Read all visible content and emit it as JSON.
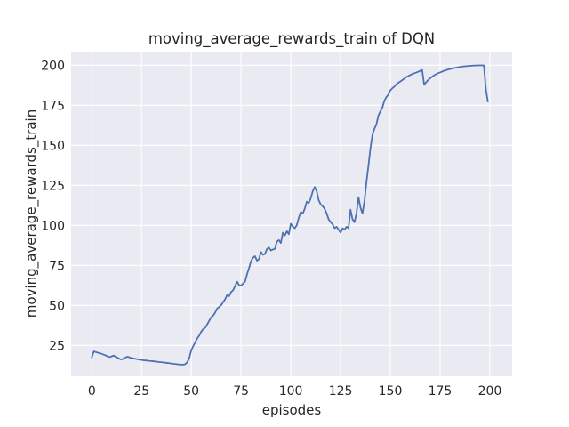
{
  "figure": {
    "background": "#ffffff"
  },
  "chart_data": {
    "type": "line",
    "title": "moving_average_rewards_train of DQN",
    "xlabel": "episodes",
    "ylabel": "moving_average_rewards_train",
    "x_ticks": [
      0,
      25,
      50,
      75,
      100,
      125,
      150,
      175,
      200
    ],
    "y_ticks": [
      25,
      50,
      75,
      100,
      125,
      150,
      175,
      200
    ],
    "xlim": [
      -10.4,
      211.2
    ],
    "ylim": [
      5.7,
      208.5
    ],
    "grid": true,
    "legend_position": "none",
    "style": {
      "plot_bg": "#EAEAF2",
      "grid_color": "#FFFFFF",
      "line_color": "#4C72B0",
      "text_color": "#262626",
      "line_width": 1.8
    },
    "series": [
      {
        "name": "moving_average_rewards_train",
        "x_start": 0,
        "x_step": 1,
        "y": [
          17.5,
          21.2,
          20.8,
          20.4,
          20.1,
          19.7,
          19.2,
          18.7,
          18.1,
          17.7,
          18.2,
          18.6,
          17.9,
          17.3,
          16.5,
          16.2,
          16.8,
          17.5,
          17.9,
          17.5,
          17.1,
          16.9,
          16.6,
          16.3,
          16.1,
          15.9,
          15.7,
          15.6,
          15.5,
          15.3,
          15.2,
          15.1,
          14.9,
          14.8,
          14.6,
          14.5,
          14.3,
          14.2,
          14.0,
          13.9,
          13.7,
          13.5,
          13.4,
          13.2,
          13.1,
          13.0,
          13.0,
          13.3,
          14.6,
          17.2,
          22.0,
          24.6,
          27.0,
          29.4,
          31.2,
          33.6,
          35.2,
          36.0,
          38.1,
          40.4,
          42.6,
          43.6,
          45.5,
          48.0,
          49.0,
          50.1,
          52.0,
          53.8,
          56.5,
          55.7,
          58.3,
          59.4,
          62.1,
          64.8,
          62.6,
          62.4,
          63.6,
          64.8,
          69.4,
          73.2,
          77.6,
          79.7,
          80.7,
          77.9,
          78.8,
          83.3,
          81.6,
          82.1,
          85.2,
          86.1,
          84.3,
          84.9,
          85.3,
          89.8,
          90.8,
          89.0,
          95.4,
          93.6,
          96.3,
          94.5,
          101.0,
          99.2,
          98.2,
          100.1,
          104.7,
          108.3,
          107.4,
          110.3,
          114.8,
          113.9,
          116.8,
          121.1,
          123.9,
          121.3,
          115.8,
          113.1,
          112.0,
          110.2,
          107.5,
          103.8,
          102.0,
          100.6,
          98.2,
          99.1,
          97.3,
          95.5,
          98.1,
          97.3,
          99.1,
          98.2,
          109.8,
          103.8,
          102.0,
          107.5,
          117.6,
          111.1,
          107.5,
          114.9,
          127.0,
          137.2,
          148.1,
          156.5,
          160.2,
          163.1,
          168.5,
          171.2,
          173.6,
          177.8,
          180.1,
          181.6,
          184.3,
          185.6,
          186.6,
          188.0,
          189.0,
          189.8,
          190.7,
          191.6,
          192.6,
          193.2,
          193.9,
          194.5,
          195.0,
          195.4,
          195.9,
          196.5,
          197.0,
          187.8,
          189.4,
          190.7,
          191.9,
          192.8,
          193.7,
          194.4,
          195.0,
          195.5,
          196.0,
          196.5,
          196.9,
          197.3,
          197.6,
          197.9,
          198.2,
          198.5,
          198.7,
          198.9,
          199.1,
          199.3,
          199.4,
          199.5,
          199.6,
          199.7,
          199.8,
          199.8,
          199.9,
          199.9,
          199.9,
          199.9,
          185.0,
          177.3
        ]
      }
    ]
  }
}
